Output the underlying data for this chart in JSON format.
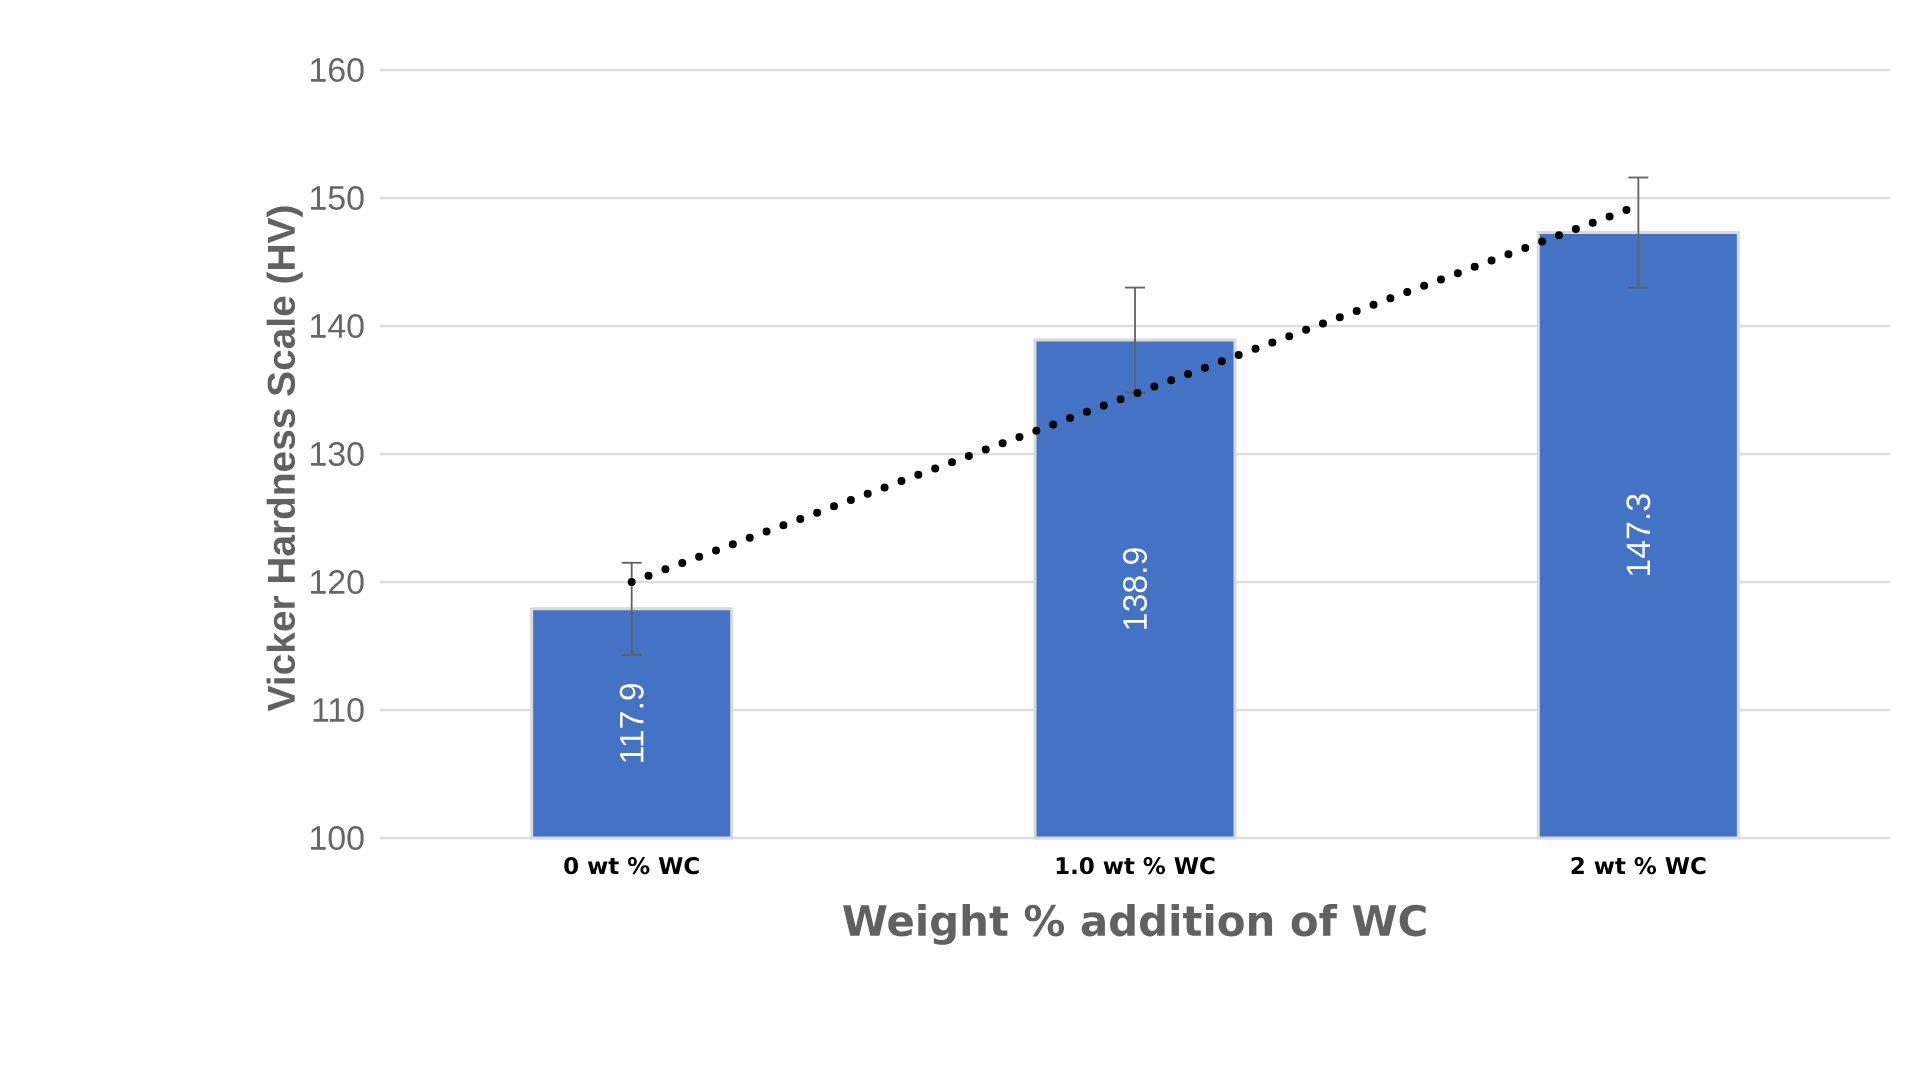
{
  "chart_data": {
    "type": "bar",
    "xlabel": "Weight % addition of WC",
    "ylabel": "Vicker Hardness Scale (HV)",
    "categories": [
      "0 wt % WC",
      "1.0 wt % WC",
      "2 wt % WC"
    ],
    "series": [
      {
        "color": "#4472c4",
        "values": [
          117.9,
          138.9,
          147.3
        ],
        "errors": [
          3.6,
          4.1,
          4.3
        ],
        "value_labels": [
          "117.9",
          "138.9",
          "147.3"
        ]
      },
      {
        "type": "line",
        "color": "#000000",
        "values": [
          120.0,
          134.7,
          149.4
        ],
        "line_style": "dotted",
        "marker": "none"
      }
    ],
    "ylim": [
      100,
      160
    ],
    "yticks": [
      100,
      110,
      120,
      130,
      140,
      150,
      160
    ],
    "grid": "y"
  }
}
